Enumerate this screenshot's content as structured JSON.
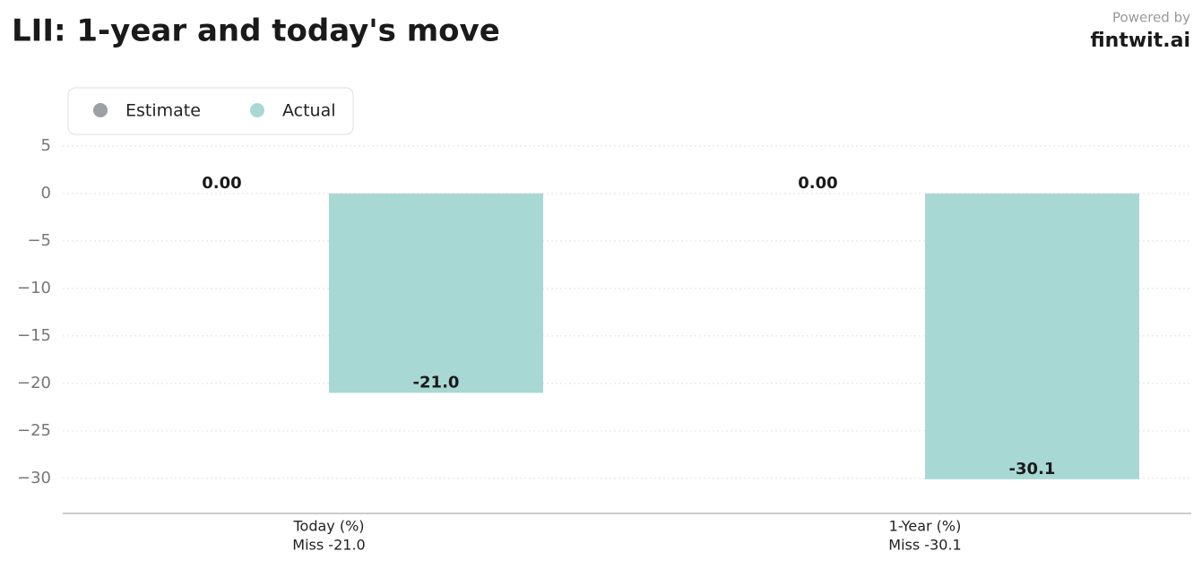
{
  "chart_data": {
    "type": "bar",
    "title": "LII: 1-year and today's move",
    "credit_label": "Powered by",
    "credit_brand": "fintwit.ai",
    "categories": [
      [
        "Today (%)",
        "Miss -21.0"
      ],
      [
        "1-Year (%)",
        "Miss -30.1"
      ]
    ],
    "series": [
      {
        "name": "Estimate",
        "color": "#9aa0a6",
        "values": [
          0,
          0
        ],
        "value_labels": [
          "0.00",
          "0.00"
        ]
      },
      {
        "name": "Actual",
        "color": "#a8d8d4",
        "values": [
          -21.0,
          -30.1
        ],
        "value_labels": [
          "-21.0",
          "-30.1"
        ]
      }
    ],
    "ylim": [
      -33.7,
      10
    ],
    "yticks": [
      {
        "value": 5,
        "label": "5"
      },
      {
        "value": 0,
        "label": "0"
      },
      {
        "value": -5,
        "label": "−5"
      },
      {
        "value": -10,
        "label": "−10"
      },
      {
        "value": -15,
        "label": "−15"
      },
      {
        "value": -20,
        "label": "−20"
      },
      {
        "value": -25,
        "label": "−25"
      },
      {
        "value": -30,
        "label": "−30"
      }
    ],
    "grid": true,
    "legend": "upper-left"
  }
}
